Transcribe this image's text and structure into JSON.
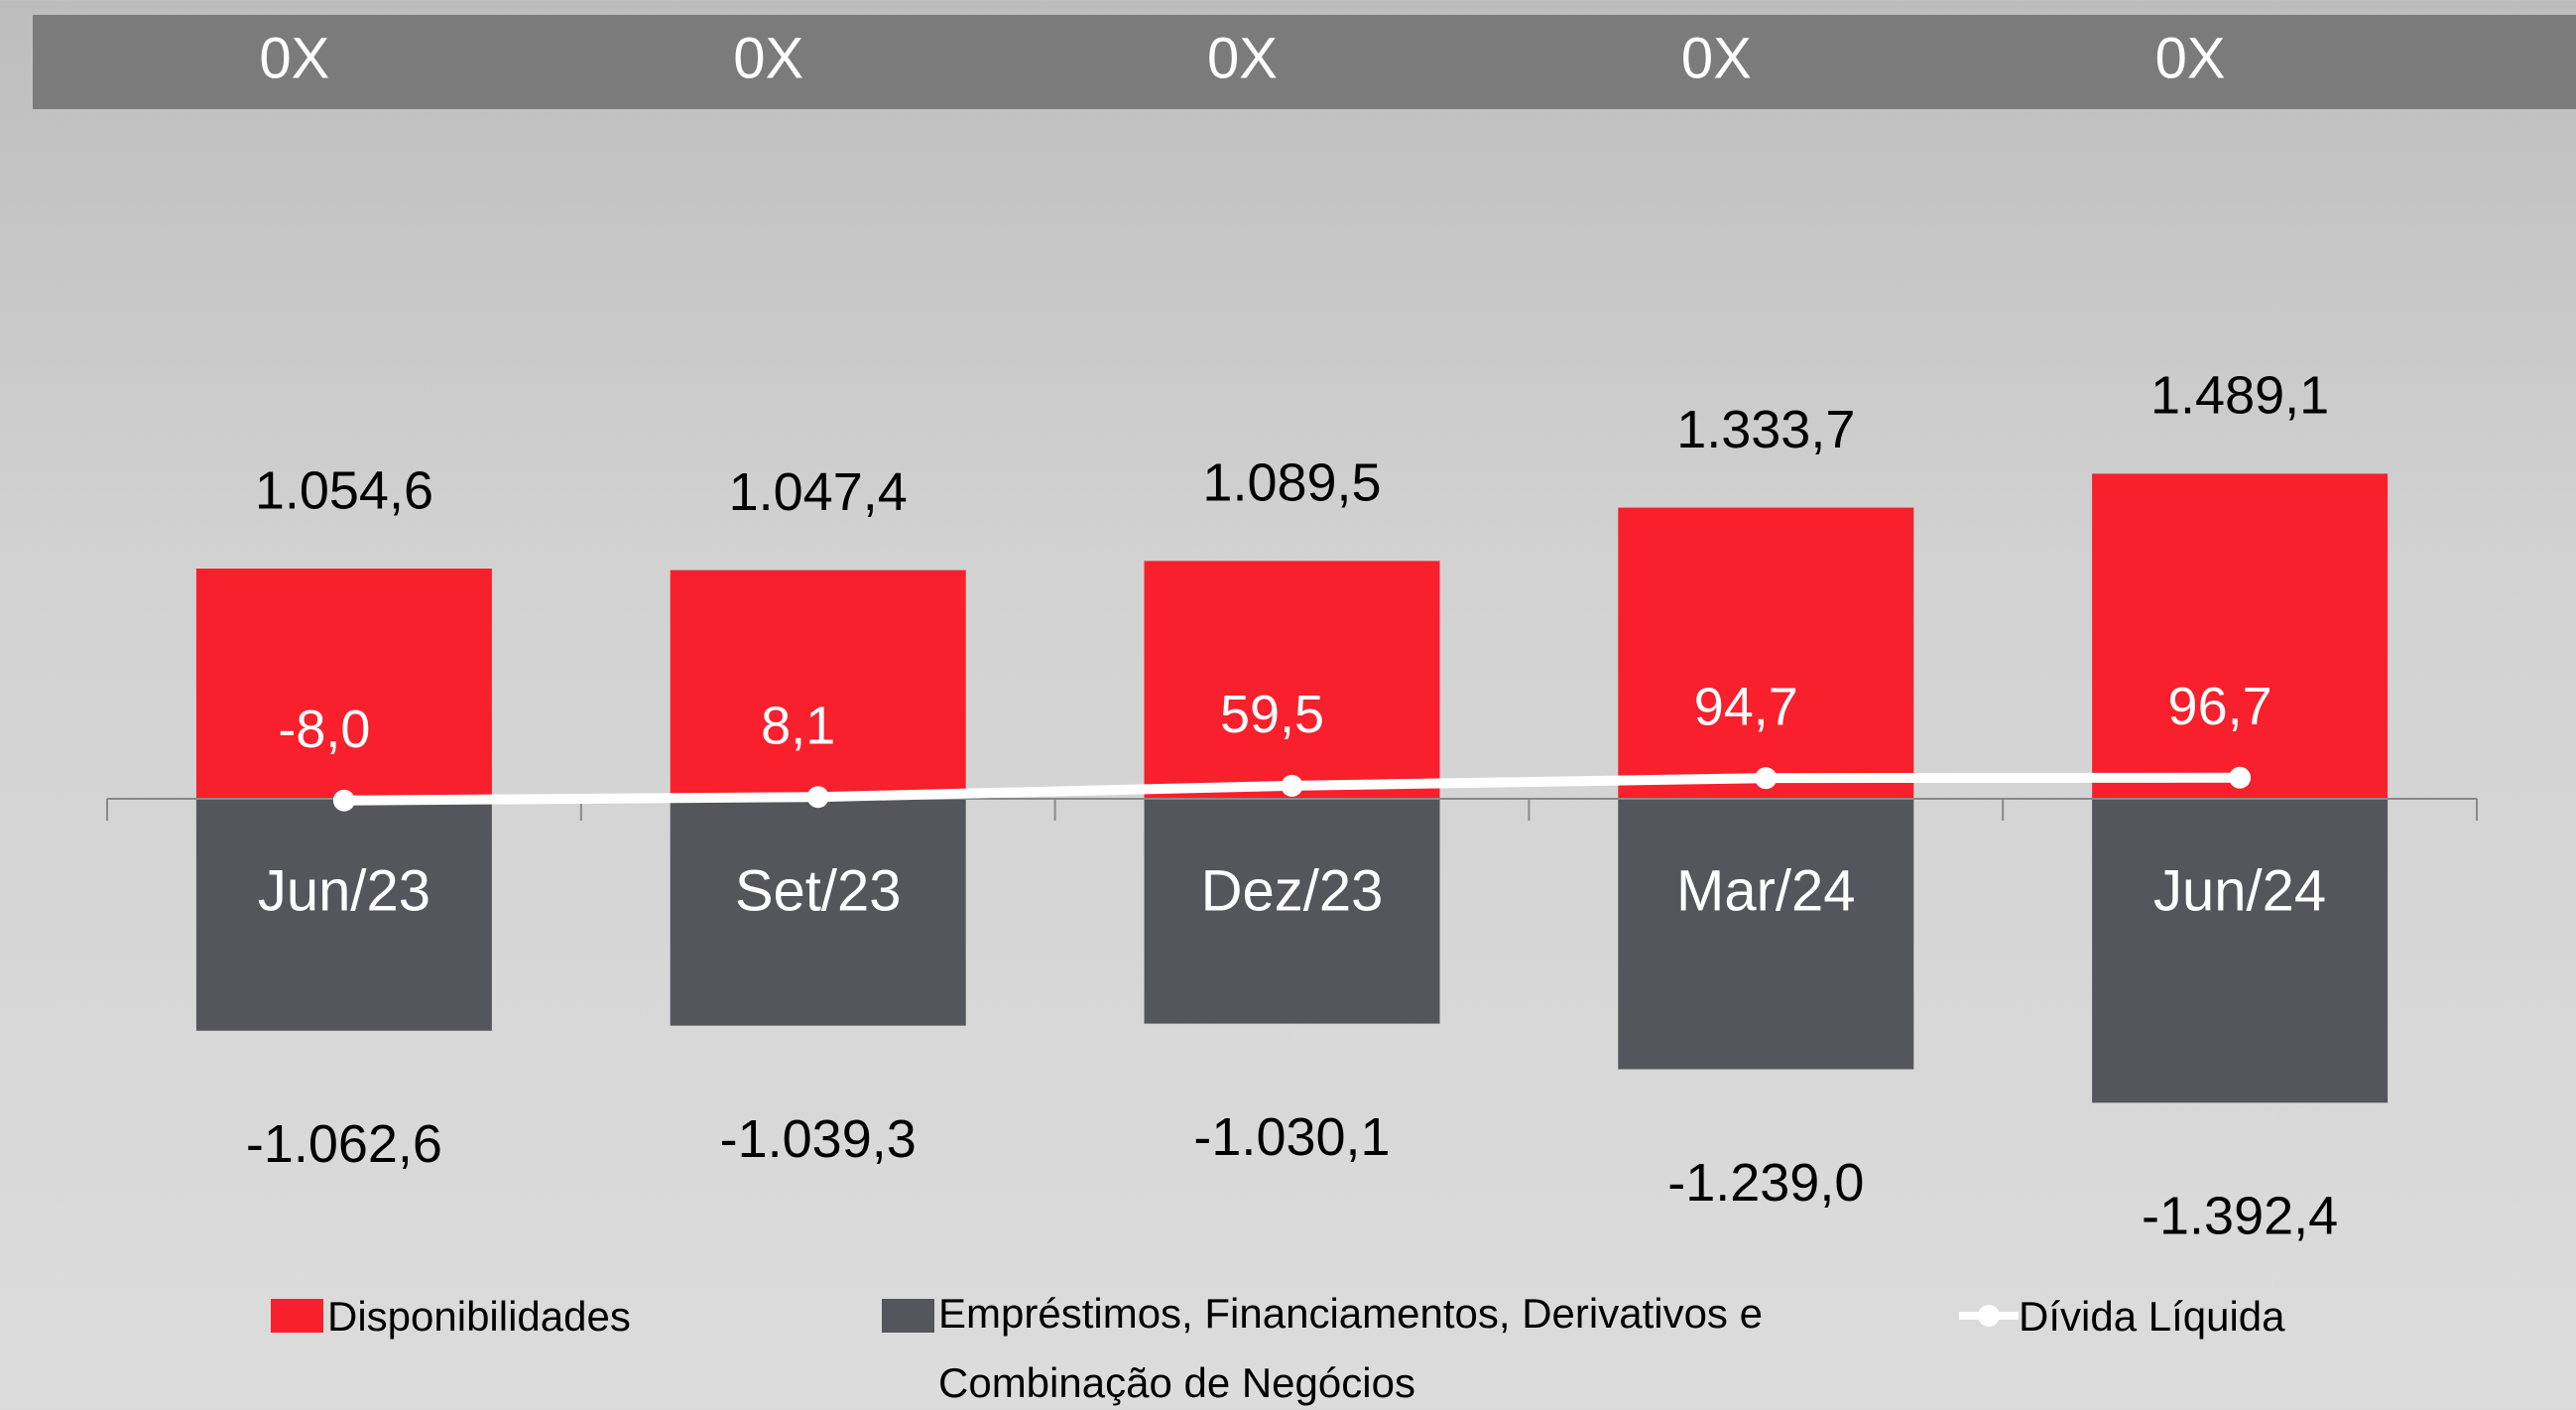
{
  "header_labels": [
    "0X",
    "0X",
    "0X",
    "0X",
    "0X"
  ],
  "chart_data": {
    "type": "bar",
    "categories": [
      "Jun/23",
      "Set/23",
      "Dez/23",
      "Mar/24",
      "Jun/24"
    ],
    "series": [
      {
        "name": "Disponibilidades",
        "color": "#f7202c",
        "type": "bar",
        "values": [
          1054.6,
          1047.4,
          1089.5,
          1333.7,
          1489.1
        ],
        "value_labels": [
          "1.054,6",
          "1.047,4",
          "1.089,5",
          "1.333,7",
          "1.489,1"
        ]
      },
      {
        "name": "Empréstimos, Financiamentos, Derivativos e Combinação de Negócios",
        "color": "#55565b",
        "type": "bar",
        "values": [
          -1062.6,
          -1039.3,
          -1030.1,
          -1239.0,
          -1392.4
        ],
        "value_labels": [
          "-1.062,6",
          "-1.039,3",
          "-1.030,1",
          "-1.239,0",
          "-1.392,4"
        ]
      },
      {
        "name": "Dívida Líquida",
        "color": "#ffffff",
        "type": "line",
        "values": [
          -8.0,
          8.1,
          59.5,
          94.7,
          96.7
        ],
        "value_labels": [
          "-8,0",
          "8,1",
          "59,5",
          "94,7",
          "96,7"
        ]
      }
    ],
    "ylim": [
      -1500,
      2000
    ]
  }
}
